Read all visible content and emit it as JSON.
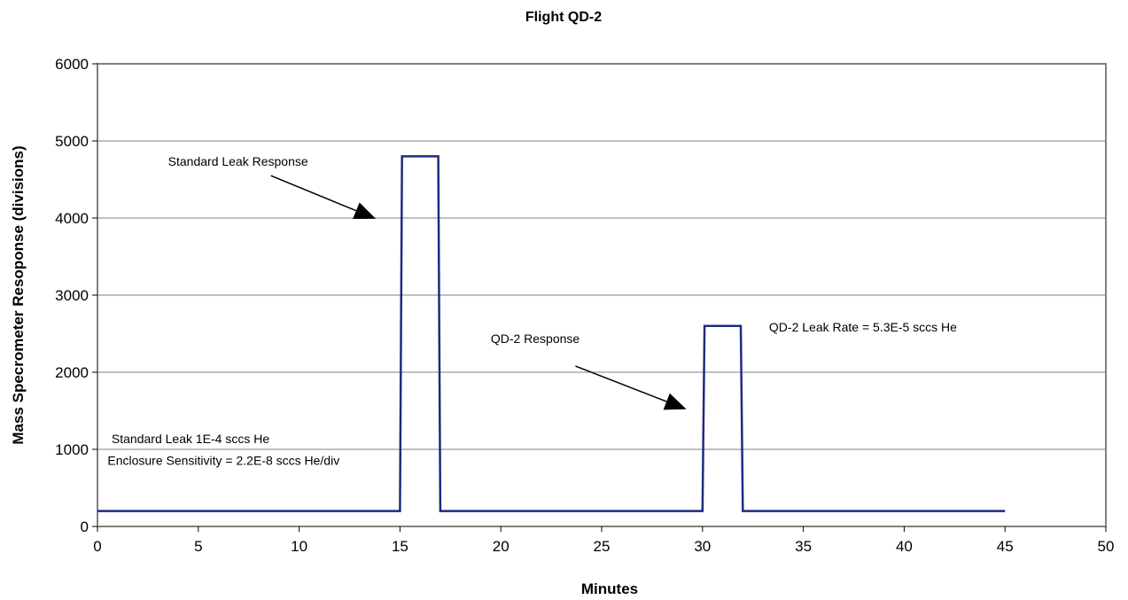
{
  "chart_data": {
    "type": "line",
    "title": "Flight QD-2",
    "xlabel": "Minutes",
    "ylabel": "Mass Specrometer Resoponse (divisions)",
    "xlim": [
      0,
      50
    ],
    "ylim": [
      0,
      6000
    ],
    "xticks": [
      0,
      5,
      10,
      15,
      20,
      25,
      30,
      35,
      40,
      45,
      50
    ],
    "yticks": [
      0,
      1000,
      2000,
      3000,
      4000,
      5000,
      6000
    ],
    "grid": "horizontal",
    "series_color": "#1f2a80",
    "plot_border_color": "#808080",
    "grid_color": "#808080",
    "series": [
      {
        "x": [
          0,
          15,
          15.1,
          16.9,
          17,
          30,
          30.1,
          31.9,
          32,
          45
        ],
        "y": [
          200,
          200,
          4800,
          4800,
          200,
          200,
          2600,
          2600,
          200,
          200
        ]
      }
    ],
    "annotations": [
      {
        "id": "standard-leak-response",
        "text": "Standard Leak  Response",
        "x": 3.5,
        "y": 4680,
        "arrow_from": [
          8.6,
          4550
        ],
        "arrow_to": [
          13.8,
          3990
        ]
      },
      {
        "id": "qd2-response",
        "text": "QD-2 Response",
        "x": 19.5,
        "y": 2380,
        "arrow_from": [
          23.7,
          2080
        ],
        "arrow_to": [
          29.2,
          1520
        ]
      },
      {
        "id": "qd2-leak-rate",
        "text": "QD-2 Leak Rate = 5.3E-5 sccs He",
        "x": 33.3,
        "y": 2530,
        "arrow_from": null,
        "arrow_to": null
      },
      {
        "id": "standard-leak",
        "text": "Standard Leak 1E-4 sccs He",
        "x": 0.7,
        "y": 1080,
        "arrow_from": null,
        "arrow_to": null
      },
      {
        "id": "enclosure-sensitivity",
        "text": "Enclosure Sensitivity = 2.2E-8 sccs He/div",
        "x": 0.5,
        "y": 800,
        "arrow_from": null,
        "arrow_to": null
      }
    ]
  }
}
